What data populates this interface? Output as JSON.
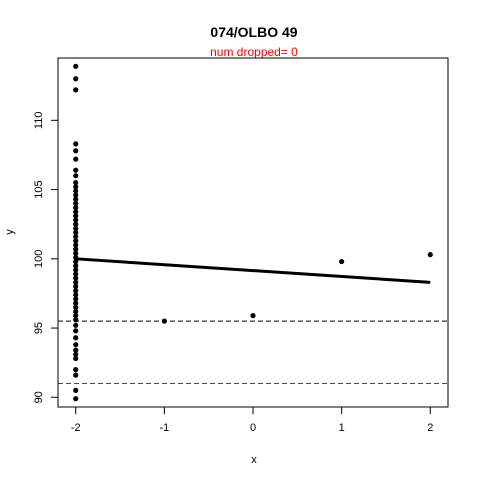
{
  "chart_data": {
    "type": "scatter",
    "title": "074/OLBO 49",
    "subtitle": "num dropped= 0",
    "xlabel": "x",
    "ylabel": "y",
    "xlim": [
      -2.2,
      2.2
    ],
    "ylim": [
      89.3,
      114.5
    ],
    "xticks": [
      -2,
      -1,
      0,
      1,
      2
    ],
    "yticks": [
      90,
      95,
      100,
      105,
      110
    ],
    "points": [
      {
        "x": -2,
        "y": 113.9
      },
      {
        "x": -2,
        "y": 113.0
      },
      {
        "x": -2,
        "y": 112.2
      },
      {
        "x": -2,
        "y": 108.3
      },
      {
        "x": -2,
        "y": 107.8
      },
      {
        "x": -2,
        "y": 107.2
      },
      {
        "x": -2,
        "y": 106.4
      },
      {
        "x": -2,
        "y": 106.0
      },
      {
        "x": -2,
        "y": 105.5
      },
      {
        "x": -2,
        "y": 105.2
      },
      {
        "x": -2,
        "y": 104.9
      },
      {
        "x": -2,
        "y": 104.6
      },
      {
        "x": -2,
        "y": 104.3
      },
      {
        "x": -2,
        "y": 104.0
      },
      {
        "x": -2,
        "y": 103.7
      },
      {
        "x": -2,
        "y": 103.4
      },
      {
        "x": -2,
        "y": 103.1
      },
      {
        "x": -2,
        "y": 102.8
      },
      {
        "x": -2,
        "y": 102.5
      },
      {
        "x": -2,
        "y": 102.2
      },
      {
        "x": -2,
        "y": 101.9
      },
      {
        "x": -2,
        "y": 101.6
      },
      {
        "x": -2,
        "y": 101.3
      },
      {
        "x": -2,
        "y": 101.0
      },
      {
        "x": -2,
        "y": 100.7
      },
      {
        "x": -2,
        "y": 100.4
      },
      {
        "x": -2,
        "y": 100.1
      },
      {
        "x": -2,
        "y": 99.8
      },
      {
        "x": -2,
        "y": 99.5
      },
      {
        "x": -2,
        "y": 99.2
      },
      {
        "x": -2,
        "y": 98.9
      },
      {
        "x": -2,
        "y": 98.6
      },
      {
        "x": -2,
        "y": 98.3
      },
      {
        "x": -2,
        "y": 98.0
      },
      {
        "x": -2,
        "y": 97.7
      },
      {
        "x": -2,
        "y": 97.4
      },
      {
        "x": -2,
        "y": 97.1
      },
      {
        "x": -2,
        "y": 96.8
      },
      {
        "x": -2,
        "y": 96.5
      },
      {
        "x": -2,
        "y": 96.2
      },
      {
        "x": -2,
        "y": 95.9
      },
      {
        "x": -2,
        "y": 95.6
      },
      {
        "x": -2,
        "y": 95.2
      },
      {
        "x": -2,
        "y": 94.8
      },
      {
        "x": -2,
        "y": 94.3
      },
      {
        "x": -2,
        "y": 93.8
      },
      {
        "x": -2,
        "y": 93.4
      },
      {
        "x": -2,
        "y": 93.1
      },
      {
        "x": -2,
        "y": 92.8
      },
      {
        "x": -2,
        "y": 92.0
      },
      {
        "x": -2,
        "y": 91.6
      },
      {
        "x": -2,
        "y": 90.5
      },
      {
        "x": -2,
        "y": 89.9
      },
      {
        "x": -1,
        "y": 95.5
      },
      {
        "x": 0,
        "y": 95.9
      },
      {
        "x": 1,
        "y": 99.8
      },
      {
        "x": 2,
        "y": 100.3
      }
    ],
    "fit_line": {
      "x": [
        -2,
        2
      ],
      "y": [
        100.0,
        98.3
      ]
    },
    "hlines": [
      {
        "y": 95.5,
        "color": "#000000",
        "style": "dashed"
      },
      {
        "y": 91.0,
        "color": "#a0282d",
        "style": "dashed"
      }
    ],
    "colors": {
      "points": "#000000",
      "fit_line": "#000000",
      "subtitle": "#ff0000",
      "axes": "#000000"
    }
  }
}
